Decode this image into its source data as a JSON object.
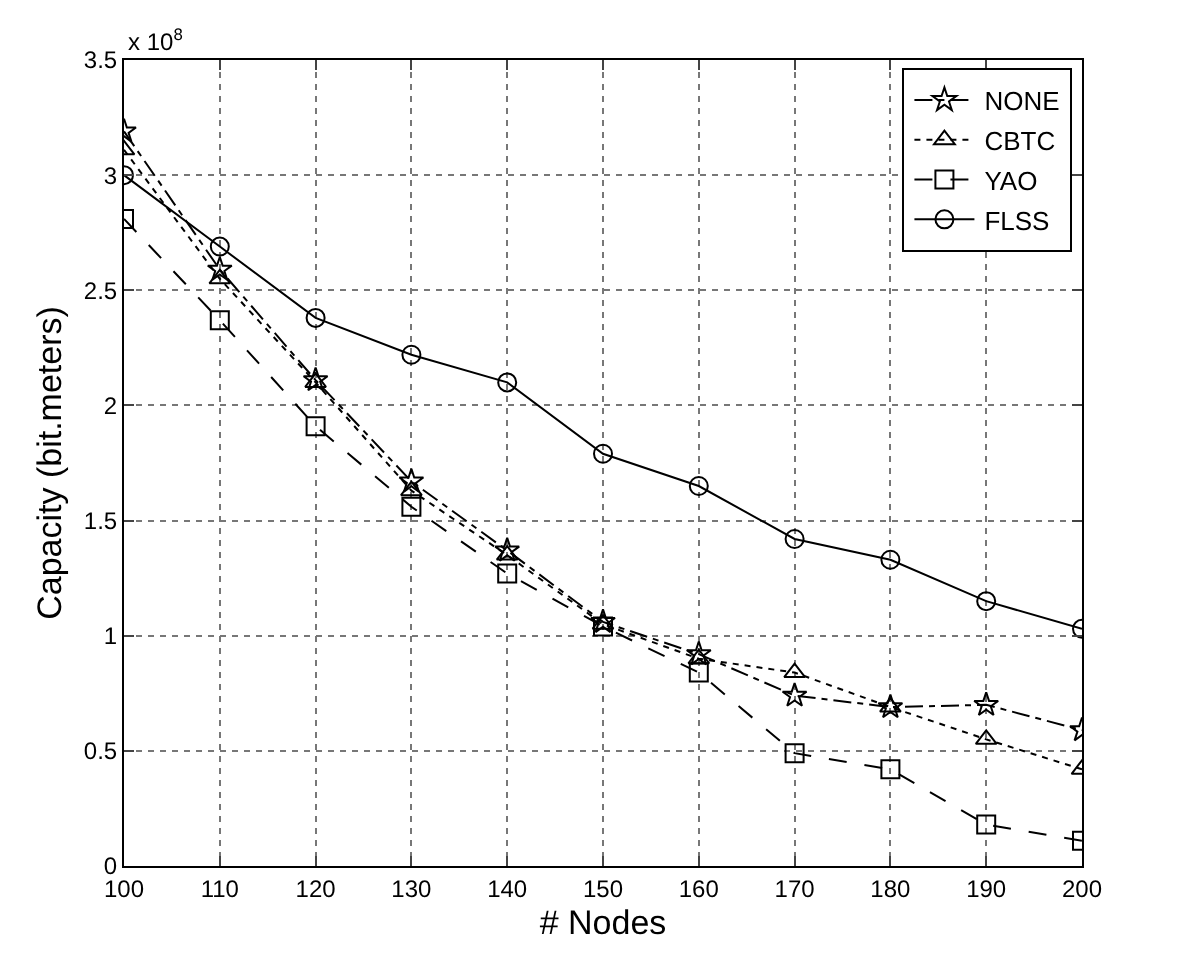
{
  "chart_data": {
    "type": "line",
    "xlabel": "# Nodes",
    "ylabel": "Capacity (bit.meters)",
    "annotations": [
      "x 10$^{8}$"
    ],
    "x": [
      100,
      110,
      120,
      130,
      140,
      150,
      160,
      170,
      180,
      190,
      200
    ],
    "xlim": [
      100,
      200
    ],
    "xticks": [
      100,
      110,
      120,
      130,
      140,
      150,
      160,
      170,
      180,
      190,
      200
    ],
    "ylim": [
      0,
      3.5
    ],
    "yticks": [
      0,
      0.5,
      1,
      1.5,
      2,
      2.5,
      3,
      3.5
    ],
    "grid": true,
    "legend": "top right",
    "series": [
      {
        "name": "NONE",
        "color": "#000000",
        "marker": "star",
        "line_style": "dashdot",
        "values": [
          3.19,
          2.59,
          2.11,
          1.67,
          1.37,
          1.06,
          0.92,
          0.74,
          0.69,
          0.7,
          0.59
        ]
      },
      {
        "name": "CBTC",
        "color": "#000000",
        "marker": "triangle",
        "line_style": "dotted",
        "values": [
          3.11,
          2.55,
          2.1,
          1.63,
          1.35,
          1.05,
          0.9,
          0.84,
          0.69,
          0.55,
          0.42
        ]
      },
      {
        "name": "YAO",
        "color": "#000000",
        "marker": "square",
        "line_style": "dashed",
        "values": [
          2.81,
          2.37,
          1.91,
          1.56,
          1.27,
          1.04,
          0.84,
          0.49,
          0.42,
          0.18,
          0.11
        ]
      },
      {
        "name": "FLSS",
        "color": "#000000",
        "marker": "circle",
        "line_style": "solid",
        "values": [
          3.0,
          2.69,
          2.38,
          2.22,
          2.1,
          1.79,
          1.65,
          1.42,
          1.33,
          1.15,
          1.03
        ]
      }
    ]
  }
}
